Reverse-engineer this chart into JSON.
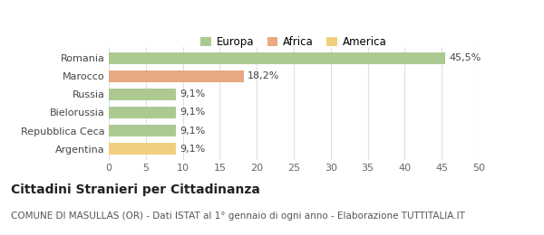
{
  "categories": [
    "Romania",
    "Marocco",
    "Russia",
    "Bielorussia",
    "Repubblica Ceca",
    "Argentina"
  ],
  "values": [
    45.5,
    18.2,
    9.1,
    9.1,
    9.1,
    9.1
  ],
  "labels": [
    "45,5%",
    "18,2%",
    "9,1%",
    "9,1%",
    "9,1%",
    "9,1%"
  ],
  "bar_colors": [
    "#adc992",
    "#e8a882",
    "#adc992",
    "#adc992",
    "#adc992",
    "#f0d080"
  ],
  "legend": [
    {
      "label": "Europa",
      "color": "#adc992"
    },
    {
      "label": "Africa",
      "color": "#e8a882"
    },
    {
      "label": "America",
      "color": "#f0d080"
    }
  ],
  "xlim": [
    0,
    50
  ],
  "xticks": [
    0,
    5,
    10,
    15,
    20,
    25,
    30,
    35,
    40,
    45,
    50
  ],
  "title": "Cittadini Stranieri per Cittadinanza",
  "subtitle": "COMUNE DI MASULLAS (OR) - Dati ISTAT al 1° gennaio di ogni anno - Elaborazione TUTTITALIA.IT",
  "background_color": "#ffffff",
  "grid_color": "#e0e0e0",
  "bar_height": 0.65,
  "title_fontsize": 10,
  "subtitle_fontsize": 7.5,
  "tick_fontsize": 8,
  "label_fontsize": 8
}
